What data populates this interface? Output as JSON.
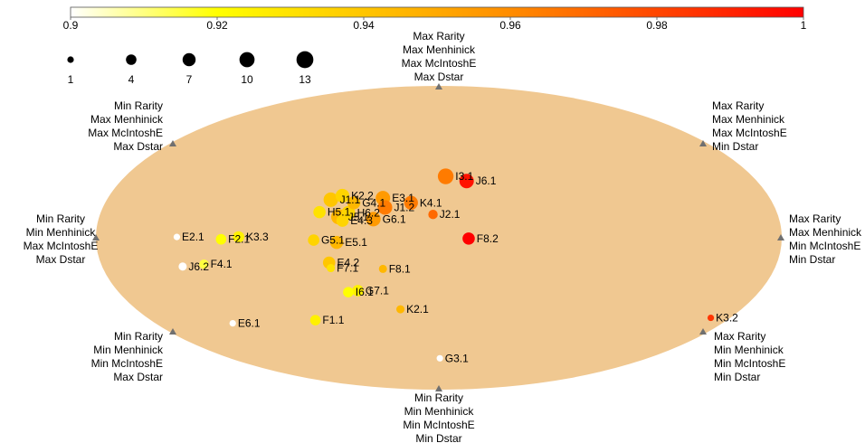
{
  "chart_data": {
    "type": "scatter",
    "colorbar": {
      "min": 0.9,
      "max": 1,
      "ticks": [
        "0.9",
        "0.92",
        "0.94",
        "0.96",
        "0.98",
        "1"
      ],
      "colors": [
        "#ffffff",
        "#ffff00",
        "#ff8c00",
        "#ff0000"
      ]
    },
    "size_legend": [
      "1",
      "4",
      "7",
      "10",
      "13"
    ],
    "axis_labels": {
      "top": [
        "Max Rarity",
        "Max Menhinick",
        "Max McIntoshE",
        "Max Dstar"
      ],
      "bottom": [
        "Min Rarity",
        "Min Menhinick",
        "Min McIntoshE",
        "Min Dstar"
      ],
      "left": [
        "Min Rarity",
        "Min Menhinick",
        "Max McIntoshE",
        "Max Dstar"
      ],
      "right": [
        "Max Rarity",
        "Max Menhinick",
        "Min McIntoshE",
        "Min Dstar"
      ],
      "top_left": [
        "Min Rarity",
        "Max Menhinick",
        "Max McIntoshE",
        "Max Dstar"
      ],
      "top_right": [
        "Max Rarity",
        "Max Menhinick",
        "Max McIntoshE",
        "Min Dstar"
      ],
      "bottom_left": [
        "Min Rarity",
        "Min Menhinick",
        "Min McIntoshE",
        "Max Dstar"
      ],
      "bottom_right": [
        "Max Rarity",
        "Min Menhinick",
        "Min McIntoshE",
        "Min Dstar"
      ]
    },
    "points": [
      {
        "label": "I3.1",
        "x": 0.02,
        "y": 0.79,
        "size": 11,
        "value": 0.965
      },
      {
        "label": "J6.1",
        "x": 0.081,
        "y": 0.73,
        "size": 9,
        "value": 0.995
      },
      {
        "label": "K2.2",
        "x": -0.281,
        "y": 0.54,
        "size": 8,
        "value": 0.935
      },
      {
        "label": "E3.1",
        "x": -0.163,
        "y": 0.51,
        "size": 9,
        "value": 0.955
      },
      {
        "label": "J1.1",
        "x": -0.315,
        "y": 0.49,
        "size": 9,
        "value": 0.94
      },
      {
        "label": "G4.1",
        "x": -0.248,
        "y": 0.45,
        "size": 7,
        "value": 0.945
      },
      {
        "label": "K4.1",
        "x": -0.081,
        "y": 0.45,
        "size": 8,
        "value": 0.965
      },
      {
        "label": "J1.2",
        "x": -0.157,
        "y": 0.39,
        "size": 9,
        "value": 0.965
      },
      {
        "label": "H5.1",
        "x": -0.348,
        "y": 0.33,
        "size": 6,
        "value": 0.93
      },
      {
        "label": "H6.2",
        "x": -0.264,
        "y": 0.32,
        "size": 8,
        "value": 0.935
      },
      {
        "label": "J2.1",
        "x": -0.017,
        "y": 0.3,
        "size": 3,
        "value": 0.97
      },
      {
        "label": "J5.1",
        "x": -0.292,
        "y": 0.27,
        "size": 10,
        "value": 0.945
      },
      {
        "label": "G6.1",
        "x": -0.191,
        "y": 0.24,
        "size": 9,
        "value": 0.955
      },
      {
        "label": "E4.3",
        "x": -0.281,
        "y": 0.22,
        "size": 6,
        "value": 0.935
      },
      {
        "label": "K3.3",
        "x": -0.584,
        "y": 0.01,
        "size": 5,
        "value": 0.925
      },
      {
        "label": "F2.1",
        "x": -0.635,
        "y": -0.02,
        "size": 4,
        "value": 0.92
      },
      {
        "label": "G5.1",
        "x": -0.365,
        "y": -0.03,
        "size": 5,
        "value": 0.935
      },
      {
        "label": "E5.1",
        "x": -0.298,
        "y": -0.06,
        "size": 7,
        "value": 0.945
      },
      {
        "label": "F8.2",
        "x": 0.087,
        "y": -0.01,
        "size": 6,
        "value": 1.0
      },
      {
        "label": "E2.1",
        "x": -0.764,
        "y": 0.01,
        "size": 1,
        "value": 0.9
      },
      {
        "label": "F4.1",
        "x": -0.685,
        "y": -0.34,
        "size": 3,
        "value": 0.915
      },
      {
        "label": "J6.2",
        "x": -0.747,
        "y": -0.37,
        "size": 2,
        "value": 0.9
      },
      {
        "label": "E4.2",
        "x": -0.32,
        "y": -0.32,
        "size": 6,
        "value": 0.94
      },
      {
        "label": "F7.1",
        "x": -0.315,
        "y": -0.39,
        "size": 2,
        "value": 0.93
      },
      {
        "label": "F8.1",
        "x": -0.163,
        "y": -0.4,
        "size": 2,
        "value": 0.945
      },
      {
        "label": "G7.1",
        "x": -0.236,
        "y": -0.68,
        "size": 5,
        "value": 0.925
      },
      {
        "label": "I6.1",
        "x": -0.264,
        "y": -0.7,
        "size": 4,
        "value": 0.92
      },
      {
        "label": "K2.1",
        "x": -0.112,
        "y": -0.92,
        "size": 2,
        "value": 0.945
      },
      {
        "label": "F1.1",
        "x": -0.36,
        "y": -1.06,
        "size": 4,
        "value": 0.925
      },
      {
        "label": "E6.1",
        "x": -0.601,
        "y": -1.1,
        "size": 1,
        "value": 0.9
      },
      {
        "label": "K3.2",
        "x": 0.793,
        "y": -1.03,
        "size": 1,
        "value": 0.985
      },
      {
        "label": "G3.1",
        "x": 0.003,
        "y": -1.55,
        "size": 1,
        "value": 0.9
      }
    ]
  }
}
